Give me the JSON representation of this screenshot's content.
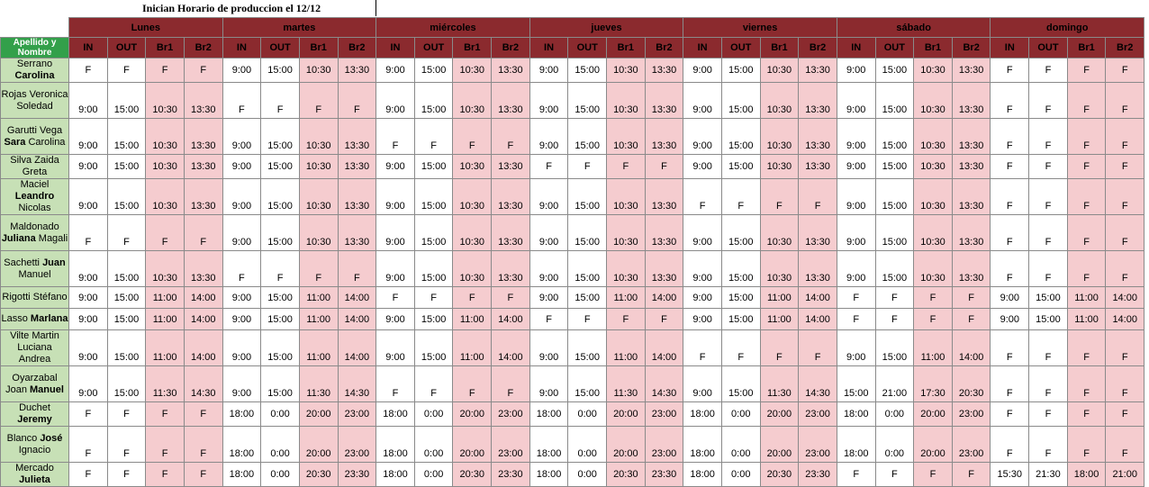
{
  "title": "Inician Horario de produccion el 12/12",
  "name_header": "Apellido y Nombre",
  "days": [
    "Lunes",
    "martes",
    "miércoles",
    "jueves",
    "viernes",
    "sábado",
    "domingo"
  ],
  "columns": [
    "IN",
    "OUT",
    "Br1",
    "Br2"
  ],
  "rows": [
    {
      "name_plain": "Serrano ",
      "name_bold": "Carolina",
      "name_rest": "",
      "tall": false,
      "values": [
        "F",
        "F",
        "F",
        "F",
        "9:00",
        "15:00",
        "10:30",
        "13:30",
        "9:00",
        "15:00",
        "10:30",
        "13:30",
        "9:00",
        "15:00",
        "10:30",
        "13:30",
        "9:00",
        "15:00",
        "10:30",
        "13:30",
        "9:00",
        "15:00",
        "10:30",
        "13:30",
        "F",
        "F",
        "F",
        "F"
      ]
    },
    {
      "name_plain": "Rojas Veronica Soledad",
      "name_bold": "",
      "name_rest": "",
      "tall": true,
      "values": [
        "9:00",
        "15:00",
        "10:30",
        "13:30",
        "F",
        "F",
        "F",
        "F",
        "9:00",
        "15:00",
        "10:30",
        "13:30",
        "9:00",
        "15:00",
        "10:30",
        "13:30",
        "9:00",
        "15:00",
        "10:30",
        "13:30",
        "9:00",
        "15:00",
        "10:30",
        "13:30",
        "F",
        "F",
        "F",
        "F"
      ]
    },
    {
      "name_plain": "Garutti Vega ",
      "name_bold": "Sara",
      "name_rest": " Carolina",
      "tall": true,
      "values": [
        "9:00",
        "15:00",
        "10:30",
        "13:30",
        "9:00",
        "15:00",
        "10:30",
        "13:30",
        "F",
        "F",
        "F",
        "F",
        "9:00",
        "15:00",
        "10:30",
        "13:30",
        "9:00",
        "15:00",
        "10:30",
        "13:30",
        "9:00",
        "15:00",
        "10:30",
        "13:30",
        "F",
        "F",
        "F",
        "F"
      ]
    },
    {
      "name_plain": "Silva Zaida Greta",
      "name_bold": "",
      "name_rest": "",
      "tall": false,
      "values": [
        "9:00",
        "15:00",
        "10:30",
        "13:30",
        "9:00",
        "15:00",
        "10:30",
        "13:30",
        "9:00",
        "15:00",
        "10:30",
        "13:30",
        "F",
        "F",
        "F",
        "F",
        "9:00",
        "15:00",
        "10:30",
        "13:30",
        "9:00",
        "15:00",
        "10:30",
        "13:30",
        "F",
        "F",
        "F",
        "F"
      ]
    },
    {
      "name_plain": "Maciel ",
      "name_bold": "Leandro",
      "name_rest": " Nicolas",
      "tall": true,
      "values": [
        "9:00",
        "15:00",
        "10:30",
        "13:30",
        "9:00",
        "15:00",
        "10:30",
        "13:30",
        "9:00",
        "15:00",
        "10:30",
        "13:30",
        "9:00",
        "15:00",
        "10:30",
        "13:30",
        "F",
        "F",
        "F",
        "F",
        "9:00",
        "15:00",
        "10:30",
        "13:30",
        "F",
        "F",
        "F",
        "F"
      ]
    },
    {
      "name_plain": "Maldonado ",
      "name_bold": "Juliana",
      "name_rest": " Magali",
      "tall": true,
      "values": [
        "F",
        "F",
        "F",
        "F",
        "9:00",
        "15:00",
        "10:30",
        "13:30",
        "9:00",
        "15:00",
        "10:30",
        "13:30",
        "9:00",
        "15:00",
        "10:30",
        "13:30",
        "9:00",
        "15:00",
        "10:30",
        "13:30",
        "9:00",
        "15:00",
        "10:30",
        "13:30",
        "F",
        "F",
        "F",
        "F"
      ]
    },
    {
      "name_plain": "Sachetti ",
      "name_bold": "Juan",
      "name_rest": " Manuel",
      "tall": true,
      "values": [
        "9:00",
        "15:00",
        "10:30",
        "13:30",
        "F",
        "F",
        "F",
        "F",
        "9:00",
        "15:00",
        "10:30",
        "13:30",
        "9:00",
        "15:00",
        "10:30",
        "13:30",
        "9:00",
        "15:00",
        "10:30",
        "13:30",
        "9:00",
        "15:00",
        "10:30",
        "13:30",
        "F",
        "F",
        "F",
        "F"
      ]
    },
    {
      "name_plain": "Rigotti Stéfano",
      "name_bold": "",
      "name_rest": "",
      "tall": false,
      "values": [
        "9:00",
        "15:00",
        "11:00",
        "14:00",
        "9:00",
        "15:00",
        "11:00",
        "14:00",
        "F",
        "F",
        "F",
        "F",
        "9:00",
        "15:00",
        "11:00",
        "14:00",
        "9:00",
        "15:00",
        "11:00",
        "14:00",
        "F",
        "F",
        "F",
        "F",
        "9:00",
        "15:00",
        "11:00",
        "14:00"
      ]
    },
    {
      "name_plain": "Lasso ",
      "name_bold": "Marlana",
      "name_rest": "",
      "tall": false,
      "values": [
        "9:00",
        "15:00",
        "11:00",
        "14:00",
        "9:00",
        "15:00",
        "11:00",
        "14:00",
        "9:00",
        "15:00",
        "11:00",
        "14:00",
        "F",
        "F",
        "F",
        "F",
        "9:00",
        "15:00",
        "11:00",
        "14:00",
        "F",
        "F",
        "F",
        "F",
        "9:00",
        "15:00",
        "11:00",
        "14:00"
      ]
    },
    {
      "name_plain": "Vilte Martin Luciana Andrea",
      "name_bold": "",
      "name_rest": "",
      "tall": true,
      "values": [
        "9:00",
        "15:00",
        "11:00",
        "14:00",
        "9:00",
        "15:00",
        "11:00",
        "14:00",
        "9:00",
        "15:00",
        "11:00",
        "14:00",
        "9:00",
        "15:00",
        "11:00",
        "14:00",
        "F",
        "F",
        "F",
        "F",
        "9:00",
        "15:00",
        "11:00",
        "14:00",
        "F",
        "F",
        "F",
        "F"
      ]
    },
    {
      "name_plain": "Oyarzabal Joan ",
      "name_bold": "Manuel",
      "name_rest": "",
      "tall": true,
      "values": [
        "9:00",
        "15:00",
        "11:30",
        "14:30",
        "9:00",
        "15:00",
        "11:30",
        "14:30",
        "F",
        "F",
        "F",
        "F",
        "9:00",
        "15:00",
        "11:30",
        "14:30",
        "9:00",
        "15:00",
        "11:30",
        "14:30",
        "15:00",
        "21:00",
        "17:30",
        "20:30",
        "F",
        "F",
        "F",
        "F"
      ]
    },
    {
      "name_plain": "Duchet ",
      "name_bold": "Jeremy",
      "name_rest": "",
      "tall": false,
      "values": [
        "F",
        "F",
        "F",
        "F",
        "18:00",
        "0:00",
        "20:00",
        "23:00",
        "18:00",
        "0:00",
        "20:00",
        "23:00",
        "18:00",
        "0:00",
        "20:00",
        "23:00",
        "18:00",
        "0:00",
        "20:00",
        "23:00",
        "18:00",
        "0:00",
        "20:00",
        "23:00",
        "F",
        "F",
        "F",
        "F"
      ]
    },
    {
      "name_plain": "Blanco ",
      "name_bold": "José",
      "name_rest": " Ignacio",
      "tall": true,
      "values": [
        "F",
        "F",
        "F",
        "F",
        "18:00",
        "0:00",
        "20:00",
        "23:00",
        "18:00",
        "0:00",
        "20:00",
        "23:00",
        "18:00",
        "0:00",
        "20:00",
        "23:00",
        "18:00",
        "0:00",
        "20:00",
        "23:00",
        "18:00",
        "0:00",
        "20:00",
        "23:00",
        "F",
        "F",
        "F",
        "F"
      ]
    },
    {
      "name_plain": "Mercado ",
      "name_bold": "Julieta",
      "name_rest": "",
      "tall": false,
      "values": [
        "F",
        "F",
        "F",
        "F",
        "18:00",
        "0:00",
        "20:30",
        "23:30",
        "18:00",
        "0:00",
        "20:30",
        "23:30",
        "18:00",
        "0:00",
        "20:30",
        "23:30",
        "18:00",
        "0:00",
        "20:30",
        "23:30",
        "F",
        "F",
        "F",
        "F",
        "15:30",
        "21:30",
        "18:00",
        "21:00"
      ]
    }
  ],
  "colors": {
    "header": "#8b2a2e",
    "name_header": "#33a04a",
    "name_cell": "#c7e0b6",
    "break_cell": "#f5cccf"
  }
}
